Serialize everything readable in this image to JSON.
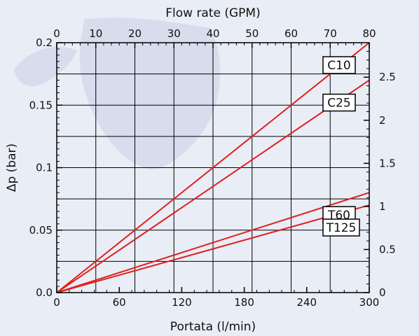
{
  "chart_data": {
    "type": "line",
    "xlabel": "Portata (l/min)",
    "x2label": "Flow rate (GPM)",
    "ylabel": "Δp (bar)",
    "y2label": "",
    "xlim": [
      0,
      300
    ],
    "ylim": [
      0,
      0.2
    ],
    "x2lim": [
      0,
      80
    ],
    "y2lim": [
      0,
      2.9
    ],
    "x_ticks": [
      0,
      60,
      120,
      180,
      240,
      300
    ],
    "x2_ticks": [
      0,
      10,
      20,
      30,
      40,
      50,
      60,
      70,
      80
    ],
    "y_ticks": [
      "0.0",
      "0.05",
      "0.1",
      "0.15",
      "0.2"
    ],
    "y2_ticks": [
      "0",
      "0.5",
      "1",
      "1.5",
      "2",
      "2.5"
    ],
    "grid": true,
    "series": [
      {
        "name": "C10",
        "x": [
          0,
          300
        ],
        "y": [
          0,
          0.2
        ]
      },
      {
        "name": "C25",
        "x": [
          0,
          300
        ],
        "y": [
          0,
          0.17
        ]
      },
      {
        "name": "T60",
        "x": [
          0,
          300
        ],
        "y": [
          0,
          0.08
        ]
      },
      {
        "name": "T125",
        "x": [
          0,
          300
        ],
        "y": [
          0,
          0.07
        ]
      }
    ],
    "colors": {
      "line": "#e0201e",
      "grid": "#000000",
      "background": "#e9edf6"
    }
  }
}
